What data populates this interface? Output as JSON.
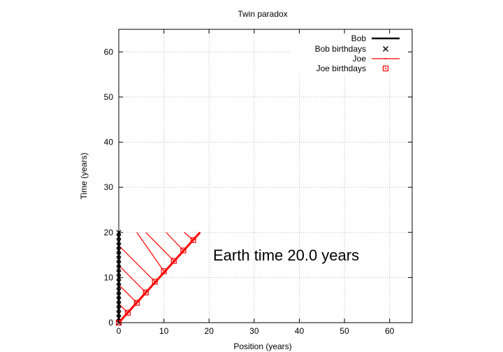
{
  "chart_data": {
    "type": "line",
    "title": "Twin paradox",
    "xlabel": "Position (years)",
    "ylabel": "Time (years)",
    "xlim": [
      0,
      65
    ],
    "ylim": [
      0,
      65
    ],
    "xticks": [
      "0",
      "10",
      "20",
      "30",
      "40",
      "50",
      "60"
    ],
    "yticks": [
      "0",
      "10",
      "20",
      "30",
      "40",
      "50",
      "60"
    ],
    "grid": true,
    "legend_position": "top-right",
    "annotation": "Earth time 20.0 years",
    "colors": {
      "bob": "#000000",
      "joe": "#ff0000",
      "grid": "#bbbbbb"
    },
    "series": [
      {
        "name": "Bob",
        "kind": "line",
        "x": [
          0,
          0
        ],
        "y": [
          0,
          20
        ]
      },
      {
        "name": "Bob birthdays",
        "kind": "points-cross",
        "x": [
          0,
          0,
          0,
          0,
          0,
          0,
          0,
          0,
          0,
          0,
          0,
          0,
          0,
          0,
          0,
          0,
          0,
          0,
          0,
          0,
          0
        ],
        "y": [
          0,
          1,
          2,
          3,
          4,
          5,
          6,
          7,
          8,
          9,
          10,
          11,
          12,
          13,
          14,
          15,
          16,
          17,
          18,
          19,
          20
        ]
      },
      {
        "name": "Joe",
        "kind": "line",
        "x": [
          0,
          18
        ],
        "y": [
          0,
          20
        ]
      },
      {
        "name": "Joe birthdays",
        "kind": "points-square",
        "x": [
          0,
          2,
          4,
          6,
          8,
          10,
          12.2,
          14.3,
          16.5
        ],
        "y": [
          0,
          2.2,
          4.4,
          6.7,
          9.1,
          11.4,
          13.7,
          16.0,
          18.3
        ]
      }
    ],
    "joe_signal_lines": [
      {
        "x": [
          2,
          0
        ],
        "y": [
          2.2,
          4.2
        ]
      },
      {
        "x": [
          4,
          0
        ],
        "y": [
          4.4,
          8.4
        ]
      },
      {
        "x": [
          6,
          0
        ],
        "y": [
          6.7,
          12.7
        ]
      },
      {
        "x": [
          8,
          0
        ],
        "y": [
          9.1,
          17.1
        ]
      },
      {
        "x": [
          10,
          4
        ],
        "y": [
          11.4,
          20
        ]
      },
      {
        "x": [
          12.2,
          6
        ],
        "y": [
          13.7,
          20
        ]
      },
      {
        "x": [
          14.3,
          10.5
        ],
        "y": [
          16.0,
          20
        ]
      },
      {
        "x": [
          16.5,
          14.5
        ],
        "y": [
          18.3,
          20
        ]
      }
    ]
  }
}
